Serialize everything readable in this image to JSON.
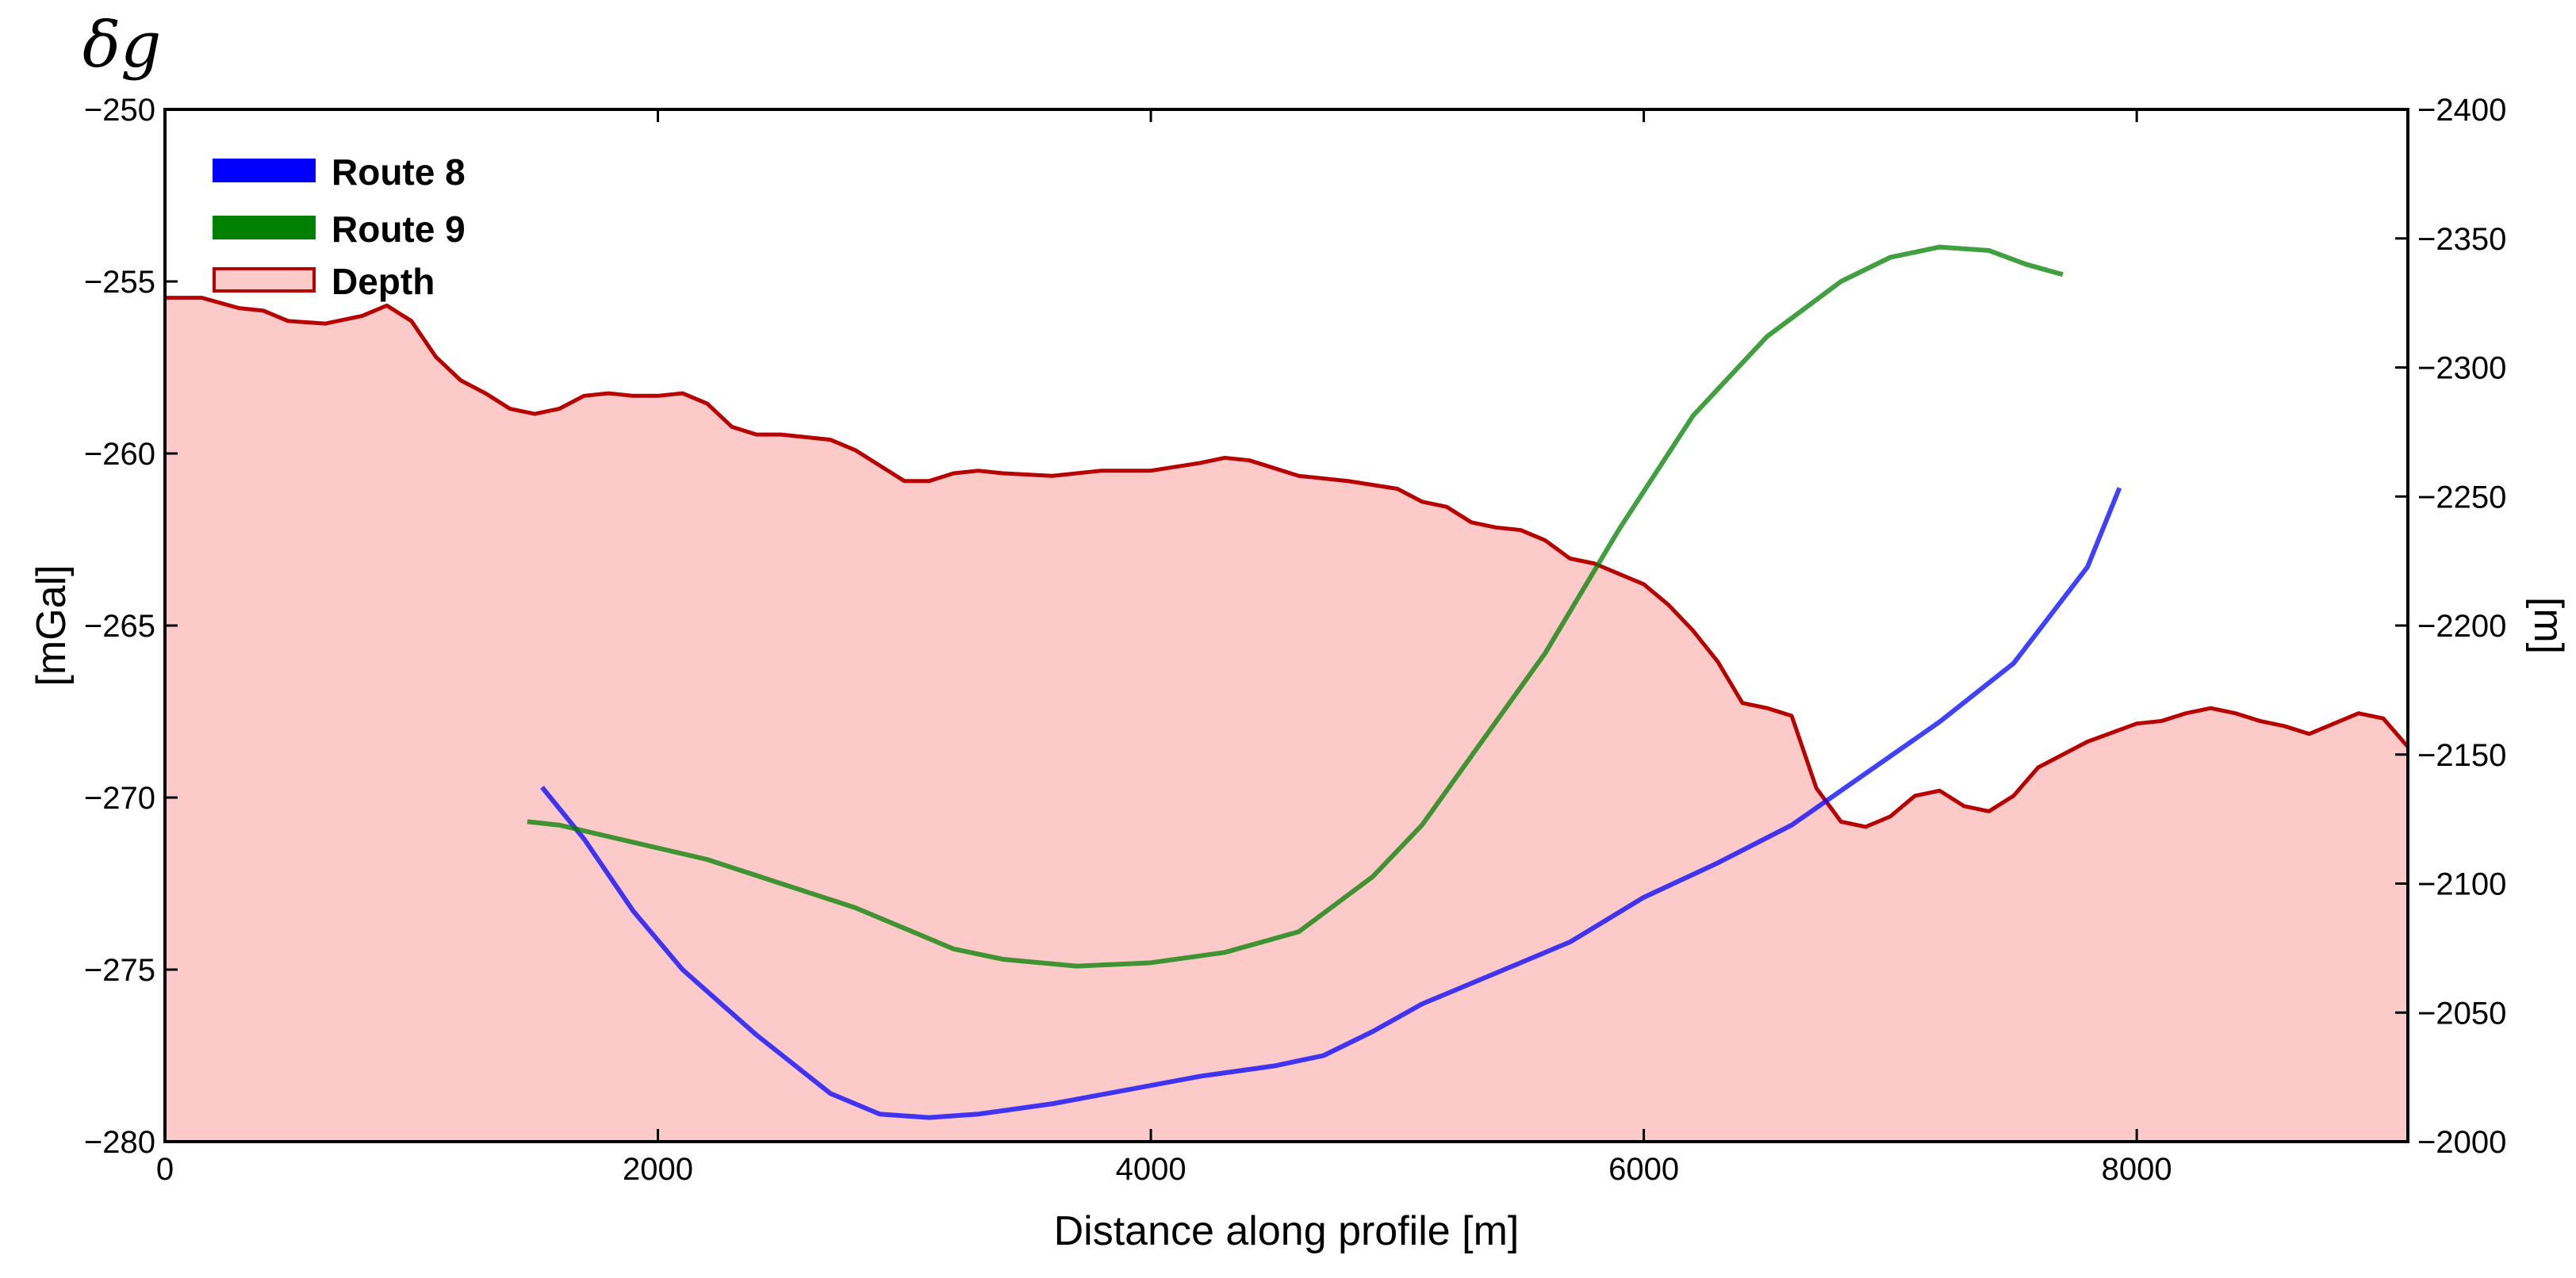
{
  "chart_data": {
    "type": "line",
    "title": "δg",
    "xlabel": "Distance along profile [m]",
    "ylabel_left": "[mGal]",
    "ylabel_right": "[m]",
    "xlim": [
      0,
      9100
    ],
    "ylim_left": [
      -280,
      -250
    ],
    "ylim_right": [
      -2400,
      -2000
    ],
    "grid": false,
    "legend_position": "top-left",
    "x_ticks": [
      0,
      2000,
      4000,
      6000,
      8000
    ],
    "x_tick_labels": [
      "0",
      "2000",
      "4000",
      "6000",
      "8000"
    ],
    "y_ticks_left": [
      -250,
      -255,
      -260,
      -265,
      -270,
      -275,
      -280
    ],
    "y_tick_labels_left": [
      "−250",
      "−255",
      "−260",
      "−265",
      "−270",
      "−275",
      "−280"
    ],
    "y_ticks_right": [
      -2000,
      -2050,
      -2100,
      -2150,
      -2200,
      -2250,
      -2300,
      -2350,
      -2400
    ],
    "y_tick_labels_right": [
      "−2000",
      "−2050",
      "−2100",
      "−2150",
      "−2200",
      "−2250",
      "−2300",
      "−2350",
      "−2400"
    ],
    "series": [
      {
        "name": "Route 8",
        "axis": "left",
        "color": "#0000ff",
        "x": [
          1530,
          1700,
          1900,
          2100,
          2400,
          2700,
          2900,
          3100,
          3300,
          3600,
          3900,
          4200,
          4500,
          4700,
          4900,
          5100,
          5400,
          5700,
          6000,
          6300,
          6600,
          6900,
          7200,
          7500,
          7800,
          7930
        ],
        "y": [
          -269.7,
          -271.2,
          -273.3,
          -275.0,
          -276.9,
          -278.6,
          -279.2,
          -279.3,
          -279.2,
          -278.9,
          -278.5,
          -278.1,
          -277.8,
          -277.5,
          -276.8,
          -276.0,
          -275.1,
          -274.2,
          -272.9,
          -271.9,
          -270.8,
          -269.3,
          -267.8,
          -266.1,
          -263.3,
          -261.0
        ]
      },
      {
        "name": "Route 9",
        "axis": "left",
        "color": "#008000",
        "x": [
          1470,
          1600,
          1900,
          2200,
          2500,
          2800,
          3000,
          3200,
          3400,
          3700,
          4000,
          4300,
          4600,
          4900,
          5100,
          5300,
          5600,
          5900,
          6200,
          6500,
          6800,
          7000,
          7200,
          7400,
          7550,
          7700
        ],
        "y": [
          -270.7,
          -270.8,
          -271.3,
          -271.8,
          -272.5,
          -273.2,
          -273.8,
          -274.4,
          -274.7,
          -274.9,
          -274.8,
          -274.5,
          -273.9,
          -272.3,
          -270.8,
          -268.8,
          -265.8,
          -262.2,
          -258.9,
          -256.6,
          -255.0,
          -254.3,
          -254.0,
          -254.1,
          -254.5,
          -254.8
        ]
      }
    ],
    "area": {
      "name": "Depth",
      "axis": "right",
      "fill_color": "#fdcaca",
      "edge_color": "#b80000",
      "x": [
        0,
        150,
        300,
        400,
        500,
        650,
        700,
        800,
        900,
        1000,
        1100,
        1200,
        1300,
        1400,
        1500,
        1600,
        1700,
        1800,
        1900,
        2000,
        2100,
        2200,
        2300,
        2400,
        2500,
        2600,
        2700,
        2800,
        2900,
        3000,
        3100,
        3200,
        3300,
        3400,
        3600,
        3800,
        4000,
        4200,
        4300,
        4400,
        4500,
        4600,
        4800,
        5000,
        5100,
        5200,
        5300,
        5400,
        5500,
        5600,
        5700,
        5800,
        5900,
        6000,
        6100,
        6200,
        6300,
        6400,
        6500,
        6600,
        6700,
        6800,
        6900,
        7000,
        7100,
        7200,
        7300,
        7400,
        7500,
        7600,
        7800,
        8000,
        8100,
        8200,
        8300,
        8400,
        8500,
        8600,
        8700,
        8800,
        8900,
        9000,
        9100
      ],
      "y": [
        -2327,
        -2327,
        -2323,
        -2322,
        -2318,
        -2317,
        -2318,
        -2320,
        -2324,
        -2318,
        -2304,
        -2295,
        -2290,
        -2284,
        -2282,
        -2284,
        -2289,
        -2290,
        -2289,
        -2289,
        -2290,
        -2286,
        -2277,
        -2274,
        -2274,
        -2273,
        -2272,
        -2268,
        -2262,
        -2256,
        -2256,
        -2259,
        -2260,
        -2259,
        -2258,
        -2260,
        -2260,
        -2263,
        -2265,
        -2264,
        -2261,
        -2258,
        -2256,
        -2253,
        -2248,
        -2246,
        -2240,
        -2238,
        -2237,
        -2233,
        -2226,
        -2224,
        -2220,
        -2216,
        -2208,
        -2198,
        -2186,
        -2170,
        -2168,
        -2165,
        -2137,
        -2124,
        -2122,
        -2126,
        -2134,
        -2136,
        -2130,
        -2128,
        -2134,
        -2145,
        -2155,
        -2162,
        -2163,
        -2166,
        -2168,
        -2166,
        -2163,
        -2161,
        -2158,
        -2162,
        -2166,
        -2164,
        -2153
      ]
    },
    "legend": [
      {
        "name": "Route 8",
        "color": "#0000ff"
      },
      {
        "name": "Route 9",
        "color": "#008000"
      },
      {
        "name": "Depth",
        "fill_color": "#fdcaca",
        "edge_color": "#b80000"
      }
    ]
  }
}
